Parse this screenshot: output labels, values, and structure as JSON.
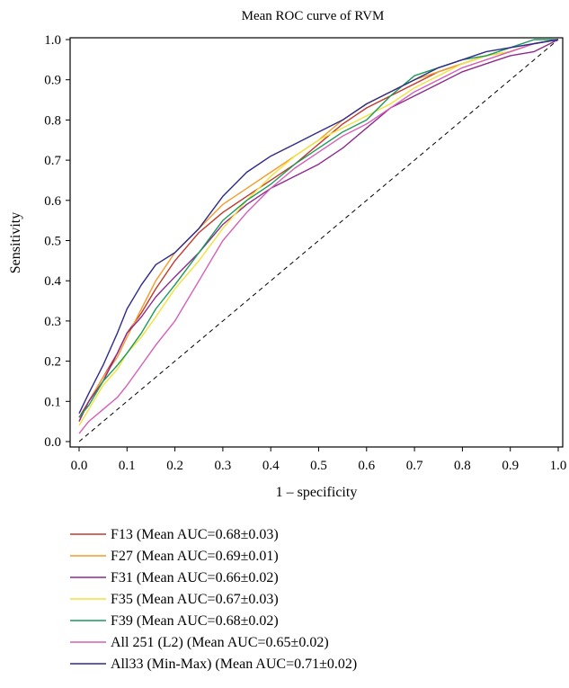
{
  "chart_data": {
    "type": "line",
    "title": "Mean ROC curve of RVM",
    "xlabel": "1 – specificity",
    "ylabel": "Sensitivity",
    "xlim": [
      0,
      1
    ],
    "ylim": [
      0,
      1
    ],
    "xticks": [
      "0.0",
      "0.1",
      "0.2",
      "0.3",
      "0.4",
      "0.5",
      "0.6",
      "0.7",
      "0.8",
      "0.9",
      "1.0"
    ],
    "yticks": [
      "0.0",
      "0.1",
      "0.2",
      "0.3",
      "0.4",
      "0.5",
      "0.6",
      "0.7",
      "0.8",
      "0.9",
      "1.0"
    ],
    "grid": false,
    "legend_position": "bottom",
    "reference_line": {
      "style": "dashed",
      "color": "#000000",
      "points": [
        [
          0,
          0
        ],
        [
          1,
          1
        ]
      ]
    },
    "series": [
      {
        "name": "F13 (Mean AUC=0.68±0.03)",
        "color": "#c0392b",
        "points": [
          [
            0,
            0.06
          ],
          [
            0.02,
            0.1
          ],
          [
            0.05,
            0.16
          ],
          [
            0.08,
            0.22
          ],
          [
            0.1,
            0.27
          ],
          [
            0.13,
            0.32
          ],
          [
            0.16,
            0.38
          ],
          [
            0.2,
            0.45
          ],
          [
            0.25,
            0.52
          ],
          [
            0.3,
            0.57
          ],
          [
            0.35,
            0.61
          ],
          [
            0.4,
            0.65
          ],
          [
            0.45,
            0.69
          ],
          [
            0.5,
            0.74
          ],
          [
            0.55,
            0.79
          ],
          [
            0.6,
            0.83
          ],
          [
            0.65,
            0.86
          ],
          [
            0.7,
            0.89
          ],
          [
            0.75,
            0.92
          ],
          [
            0.8,
            0.94
          ],
          [
            0.85,
            0.96
          ],
          [
            0.9,
            0.97
          ],
          [
            0.95,
            0.99
          ],
          [
            1.0,
            1.0
          ]
        ]
      },
      {
        "name": "F27 (Mean AUC=0.69±0.01)",
        "color": "#f39c2a",
        "points": [
          [
            0,
            0.05
          ],
          [
            0.02,
            0.1
          ],
          [
            0.05,
            0.16
          ],
          [
            0.08,
            0.21
          ],
          [
            0.1,
            0.26
          ],
          [
            0.13,
            0.33
          ],
          [
            0.16,
            0.4
          ],
          [
            0.2,
            0.47
          ],
          [
            0.25,
            0.53
          ],
          [
            0.3,
            0.59
          ],
          [
            0.35,
            0.63
          ],
          [
            0.4,
            0.67
          ],
          [
            0.45,
            0.71
          ],
          [
            0.5,
            0.75
          ],
          [
            0.55,
            0.8
          ],
          [
            0.6,
            0.84
          ],
          [
            0.65,
            0.87
          ],
          [
            0.7,
            0.9
          ],
          [
            0.75,
            0.92
          ],
          [
            0.8,
            0.94
          ],
          [
            0.85,
            0.96
          ],
          [
            0.9,
            0.97
          ],
          [
            0.95,
            0.99
          ],
          [
            1.0,
            1.0
          ]
        ]
      },
      {
        "name": "F31 (Mean AUC=0.66±0.02)",
        "color": "#8e2a8e",
        "points": [
          [
            0,
            0.05
          ],
          [
            0.02,
            0.1
          ],
          [
            0.05,
            0.15
          ],
          [
            0.08,
            0.22
          ],
          [
            0.1,
            0.27
          ],
          [
            0.13,
            0.31
          ],
          [
            0.16,
            0.36
          ],
          [
            0.2,
            0.41
          ],
          [
            0.25,
            0.47
          ],
          [
            0.3,
            0.54
          ],
          [
            0.35,
            0.59
          ],
          [
            0.4,
            0.63
          ],
          [
            0.45,
            0.66
          ],
          [
            0.5,
            0.69
          ],
          [
            0.55,
            0.73
          ],
          [
            0.6,
            0.78
          ],
          [
            0.65,
            0.83
          ],
          [
            0.7,
            0.86
          ],
          [
            0.75,
            0.89
          ],
          [
            0.8,
            0.92
          ],
          [
            0.85,
            0.94
          ],
          [
            0.9,
            0.96
          ],
          [
            0.95,
            0.97
          ],
          [
            1.0,
            1.0
          ]
        ]
      },
      {
        "name": "F35 (Mean AUC=0.67±0.03)",
        "color": "#f1e23a",
        "points": [
          [
            0,
            0.04
          ],
          [
            0.02,
            0.08
          ],
          [
            0.05,
            0.14
          ],
          [
            0.08,
            0.18
          ],
          [
            0.1,
            0.22
          ],
          [
            0.13,
            0.26
          ],
          [
            0.16,
            0.31
          ],
          [
            0.2,
            0.38
          ],
          [
            0.25,
            0.45
          ],
          [
            0.3,
            0.53
          ],
          [
            0.35,
            0.6
          ],
          [
            0.4,
            0.66
          ],
          [
            0.45,
            0.71
          ],
          [
            0.5,
            0.75
          ],
          [
            0.55,
            0.78
          ],
          [
            0.6,
            0.81
          ],
          [
            0.65,
            0.84
          ],
          [
            0.7,
            0.88
          ],
          [
            0.75,
            0.91
          ],
          [
            0.8,
            0.94
          ],
          [
            0.85,
            0.96
          ],
          [
            0.9,
            0.97
          ],
          [
            0.95,
            0.99
          ],
          [
            1.0,
            1.0
          ]
        ]
      },
      {
        "name": "F39 (Mean AUC=0.68±0.02)",
        "color": "#1a9a5a",
        "points": [
          [
            0,
            0.06
          ],
          [
            0.02,
            0.09
          ],
          [
            0.05,
            0.15
          ],
          [
            0.08,
            0.19
          ],
          [
            0.1,
            0.22
          ],
          [
            0.13,
            0.27
          ],
          [
            0.16,
            0.33
          ],
          [
            0.2,
            0.39
          ],
          [
            0.25,
            0.47
          ],
          [
            0.3,
            0.55
          ],
          [
            0.35,
            0.6
          ],
          [
            0.4,
            0.64
          ],
          [
            0.45,
            0.69
          ],
          [
            0.5,
            0.73
          ],
          [
            0.55,
            0.77
          ],
          [
            0.6,
            0.8
          ],
          [
            0.65,
            0.86
          ],
          [
            0.7,
            0.91
          ],
          [
            0.75,
            0.93
          ],
          [
            0.8,
            0.95
          ],
          [
            0.85,
            0.96
          ],
          [
            0.9,
            0.98
          ],
          [
            0.95,
            1.0
          ],
          [
            1.0,
            1.0
          ]
        ]
      },
      {
        "name": "All 251 (L2) (Mean AUC=0.65±0.02)",
        "color": "#d45fb8",
        "points": [
          [
            0,
            0.02
          ],
          [
            0.02,
            0.05
          ],
          [
            0.05,
            0.08
          ],
          [
            0.08,
            0.11
          ],
          [
            0.1,
            0.14
          ],
          [
            0.13,
            0.19
          ],
          [
            0.16,
            0.24
          ],
          [
            0.2,
            0.3
          ],
          [
            0.25,
            0.4
          ],
          [
            0.3,
            0.5
          ],
          [
            0.35,
            0.57
          ],
          [
            0.4,
            0.63
          ],
          [
            0.45,
            0.68
          ],
          [
            0.5,
            0.72
          ],
          [
            0.55,
            0.76
          ],
          [
            0.6,
            0.79
          ],
          [
            0.65,
            0.83
          ],
          [
            0.7,
            0.87
          ],
          [
            0.75,
            0.9
          ],
          [
            0.8,
            0.93
          ],
          [
            0.85,
            0.95
          ],
          [
            0.9,
            0.97
          ],
          [
            0.95,
            0.99
          ],
          [
            1.0,
            1.0
          ]
        ]
      },
      {
        "name": "All33 (Min-Max) (Mean AUC=0.71±0.02)",
        "color": "#2e2a8c",
        "points": [
          [
            0,
            0.07
          ],
          [
            0.02,
            0.12
          ],
          [
            0.05,
            0.19
          ],
          [
            0.08,
            0.27
          ],
          [
            0.1,
            0.33
          ],
          [
            0.13,
            0.39
          ],
          [
            0.16,
            0.44
          ],
          [
            0.2,
            0.47
          ],
          [
            0.25,
            0.53
          ],
          [
            0.3,
            0.61
          ],
          [
            0.35,
            0.67
          ],
          [
            0.4,
            0.71
          ],
          [
            0.45,
            0.74
          ],
          [
            0.5,
            0.77
          ],
          [
            0.55,
            0.8
          ],
          [
            0.6,
            0.84
          ],
          [
            0.65,
            0.87
          ],
          [
            0.7,
            0.9
          ],
          [
            0.75,
            0.93
          ],
          [
            0.8,
            0.95
          ],
          [
            0.85,
            0.97
          ],
          [
            0.9,
            0.98
          ],
          [
            0.95,
            0.99
          ],
          [
            1.0,
            1.0
          ]
        ]
      }
    ]
  }
}
